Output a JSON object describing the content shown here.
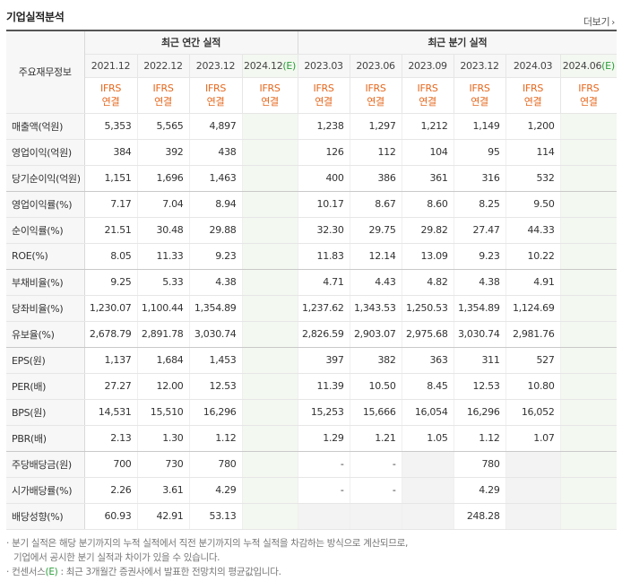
{
  "section": {
    "title": "기업실적분석",
    "more_label": "더보기"
  },
  "table": {
    "corner_label": "주요재무정보",
    "annual_group_label": "최근 연간 실적",
    "quarter_group_label": "최근 분기 실적",
    "periods": [
      "2021.12",
      "2022.12",
      "2023.12",
      "2024.12",
      "2023.03",
      "2023.06",
      "2023.09",
      "2023.12",
      "2024.03",
      "2024.06"
    ],
    "estimate_suffix": "(E)",
    "ifrs_top": "IFRS",
    "ifrs_bottom": "연결",
    "rows": [
      {
        "label": "매출액(억원)",
        "values": [
          "5,353",
          "5,565",
          "4,897",
          "",
          "1,238",
          "1,297",
          "1,212",
          "1,149",
          "1,200",
          ""
        ]
      },
      {
        "label": "영업이익(억원)",
        "values": [
          "384",
          "392",
          "438",
          "",
          "126",
          "112",
          "104",
          "95",
          "114",
          ""
        ]
      },
      {
        "label": "당기순이익(억원)",
        "values": [
          "1,151",
          "1,696",
          "1,463",
          "",
          "400",
          "386",
          "361",
          "316",
          "532",
          ""
        ]
      },
      {
        "label": "영업이익률(%)",
        "values": [
          "7.17",
          "7.04",
          "8.94",
          "",
          "10.17",
          "8.67",
          "8.60",
          "8.25",
          "9.50",
          ""
        ]
      },
      {
        "label": "순이익률(%)",
        "values": [
          "21.51",
          "30.48",
          "29.88",
          "",
          "32.30",
          "29.75",
          "29.82",
          "27.47",
          "44.33",
          ""
        ]
      },
      {
        "label": "ROE(%)",
        "values": [
          "8.05",
          "11.33",
          "9.23",
          "",
          "11.83",
          "12.14",
          "13.09",
          "9.23",
          "10.22",
          ""
        ]
      },
      {
        "label": "부채비율(%)",
        "values": [
          "9.25",
          "5.33",
          "4.38",
          "",
          "4.71",
          "4.43",
          "4.82",
          "4.38",
          "4.91",
          ""
        ]
      },
      {
        "label": "당좌비율(%)",
        "values": [
          "1,230.07",
          "1,100.44",
          "1,354.89",
          "",
          "1,237.62",
          "1,343.53",
          "1,250.53",
          "1,354.89",
          "1,124.69",
          ""
        ]
      },
      {
        "label": "유보율(%)",
        "values": [
          "2,678.79",
          "2,891.78",
          "3,030.74",
          "",
          "2,826.59",
          "2,903.07",
          "2,975.68",
          "3,030.74",
          "2,981.76",
          ""
        ]
      },
      {
        "label": "EPS(원)",
        "values": [
          "1,137",
          "1,684",
          "1,453",
          "",
          "397",
          "382",
          "363",
          "311",
          "527",
          ""
        ]
      },
      {
        "label": "PER(배)",
        "values": [
          "27.27",
          "12.00",
          "12.53",
          "",
          "11.39",
          "10.50",
          "8.45",
          "12.53",
          "10.80",
          ""
        ]
      },
      {
        "label": "BPS(원)",
        "values": [
          "14,531",
          "15,510",
          "16,296",
          "",
          "15,253",
          "15,666",
          "16,054",
          "16,296",
          "16,052",
          ""
        ]
      },
      {
        "label": "PBR(배)",
        "values": [
          "2.13",
          "1.30",
          "1.12",
          "",
          "1.29",
          "1.21",
          "1.05",
          "1.12",
          "1.07",
          ""
        ]
      },
      {
        "label": "주당배당금(원)",
        "values": [
          "700",
          "730",
          "780",
          "",
          "-",
          "-",
          "",
          "780",
          "",
          ""
        ]
      },
      {
        "label": "시가배당률(%)",
        "values": [
          "2.26",
          "3.61",
          "4.29",
          "",
          "-",
          "-",
          "",
          "4.29",
          "",
          ""
        ]
      },
      {
        "label": "배당성향(%)",
        "values": [
          "60.93",
          "42.91",
          "53.13",
          "",
          "",
          "",
          "",
          "248.28",
          "",
          ""
        ]
      }
    ]
  },
  "notes": {
    "line1": "분기 실적은 해당 분기까지의 누적 실적에서 직전 분기까지의 누적 실적을 차감하는 방식으로 계산되므로,",
    "line2": "기업에서 공시한 분기 실적과 차이가 있을 수 있습니다.",
    "line3_prefix": "컨센서스",
    "line3_mark": "(E)",
    "line3_rest": " : 최근 3개월간 증권사에서 발표한 전망치의 평균값입니다."
  },
  "colors": {
    "ifrs": "#e5671d",
    "estimate": "#2a9d3a",
    "estimate_bg": "#f3f8f0"
  }
}
